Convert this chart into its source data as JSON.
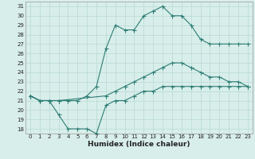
{
  "line1_x": [
    0,
    1,
    2,
    3,
    4,
    5,
    6,
    7,
    8,
    9,
    10,
    11,
    12,
    13,
    14,
    15,
    16,
    17,
    18,
    19,
    20,
    21,
    22,
    23
  ],
  "line1_y": [
    21.5,
    21.0,
    21.0,
    21.0,
    21.0,
    21.0,
    21.5,
    22.5,
    26.5,
    29.0,
    28.5,
    28.5,
    30.0,
    30.5,
    31.0,
    30.0,
    30.0,
    29.0,
    27.5,
    27.0,
    27.0,
    27.0,
    27.0,
    27.0
  ],
  "line2_x": [
    0,
    1,
    2,
    3,
    8,
    9,
    10,
    11,
    12,
    13,
    14,
    15,
    16,
    17,
    18,
    19,
    20,
    21,
    22,
    23
  ],
  "line2_y": [
    21.5,
    21.0,
    21.0,
    21.0,
    21.5,
    22.0,
    22.5,
    23.0,
    23.5,
    24.0,
    24.5,
    25.0,
    25.0,
    24.5,
    24.0,
    23.5,
    23.5,
    23.0,
    23.0,
    22.5
  ],
  "line3_x": [
    0,
    1,
    2,
    3,
    4,
    5,
    6,
    7,
    8,
    9,
    10,
    11,
    12,
    13,
    14,
    15,
    16,
    17,
    18,
    19,
    20,
    21,
    22,
    23
  ],
  "line3_y": [
    21.5,
    21.0,
    21.0,
    19.5,
    18.0,
    18.0,
    18.0,
    17.5,
    20.5,
    21.0,
    21.0,
    21.5,
    22.0,
    22.0,
    22.5,
    22.5,
    22.5,
    22.5,
    22.5,
    22.5,
    22.5,
    22.5,
    22.5,
    22.5
  ],
  "line_color": "#2d7d74",
  "bg_color": "#d8eeea",
  "grid_color": "#b8d9d4",
  "xlabel": "Humidex (Indice chaleur)",
  "xlim": [
    -0.5,
    23.5
  ],
  "ylim": [
    17.5,
    31.5
  ],
  "xticks": [
    0,
    1,
    2,
    3,
    4,
    5,
    6,
    7,
    8,
    9,
    10,
    11,
    12,
    13,
    14,
    15,
    16,
    17,
    18,
    19,
    20,
    21,
    22,
    23
  ],
  "yticks": [
    18,
    19,
    20,
    21,
    22,
    23,
    24,
    25,
    26,
    27,
    28,
    29,
    30,
    31
  ],
  "tick_fontsize": 5,
  "xlabel_fontsize": 6.5
}
